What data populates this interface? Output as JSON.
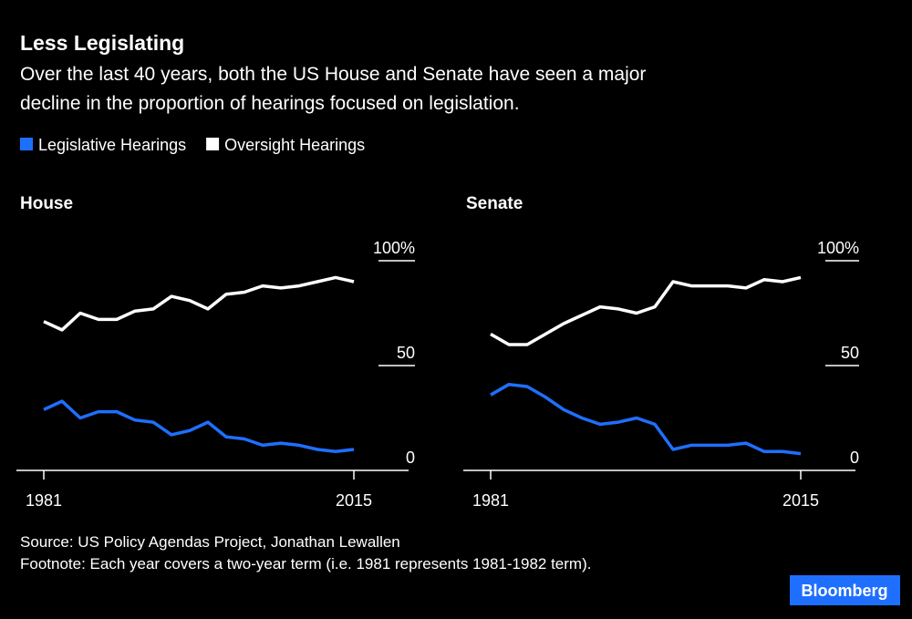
{
  "title": "Less Legislating",
  "subtitle": [
    "Over the last 40 years, both the US House and Senate have seen a major",
    "decline in the proportion of hearings focused on legislation."
  ],
  "source": "Source: US Policy Agendas Project, Jonathan Lewallen",
  "footnote": "Footnote: Each year covers a two-year term (i.e. 1981 represents 1981-1982 term).",
  "brand": "Bloomberg",
  "chart_data": [
    {
      "type": "line",
      "title": "House",
      "x": [
        1981,
        1983,
        1985,
        1987,
        1989,
        1991,
        1993,
        1995,
        1997,
        1999,
        2001,
        2003,
        2005,
        2007,
        2009,
        2011,
        2013,
        2015
      ],
      "xlim": [
        1978,
        2021
      ],
      "xticks": [
        1981,
        2015
      ],
      "ylim": [
        0,
        100
      ],
      "yticks": [
        0,
        50,
        {
          "value": 100,
          "label": "100%"
        }
      ],
      "series": [
        {
          "name": "Legislative Hearings",
          "color": "#1f6fff",
          "values": [
            29,
            33,
            25,
            28,
            28,
            24,
            23,
            17,
            19,
            23,
            16,
            15,
            12,
            13,
            12,
            10,
            9,
            10
          ]
        },
        {
          "name": "Oversight Hearings",
          "color": "#ffffff",
          "values": [
            71,
            67,
            75,
            72,
            72,
            76,
            77,
            83,
            81,
            77,
            84,
            85,
            88,
            87,
            88,
            90,
            92,
            90
          ]
        }
      ]
    },
    {
      "type": "line",
      "title": "Senate",
      "x": [
        1981,
        1983,
        1985,
        1987,
        1989,
        1991,
        1993,
        1995,
        1997,
        1999,
        2001,
        2003,
        2005,
        2007,
        2009,
        2011,
        2013,
        2015
      ],
      "xlim": [
        1978,
        2021
      ],
      "xticks": [
        1981,
        2015
      ],
      "ylim": [
        0,
        100
      ],
      "yticks": [
        0,
        50,
        {
          "value": 100,
          "label": "100%"
        }
      ],
      "series": [
        {
          "name": "Legislative Hearings",
          "color": "#1f6fff",
          "values": [
            36,
            41,
            40,
            35,
            29,
            25,
            22,
            23,
            25,
            22,
            10,
            12,
            12,
            12,
            13,
            9,
            9,
            8
          ]
        },
        {
          "name": "Oversight Hearings",
          "color": "#ffffff",
          "values": [
            65,
            60,
            60,
            65,
            70,
            74,
            78,
            77,
            75,
            78,
            90,
            88,
            88,
            88,
            87,
            91,
            90,
            92
          ]
        }
      ]
    }
  ]
}
